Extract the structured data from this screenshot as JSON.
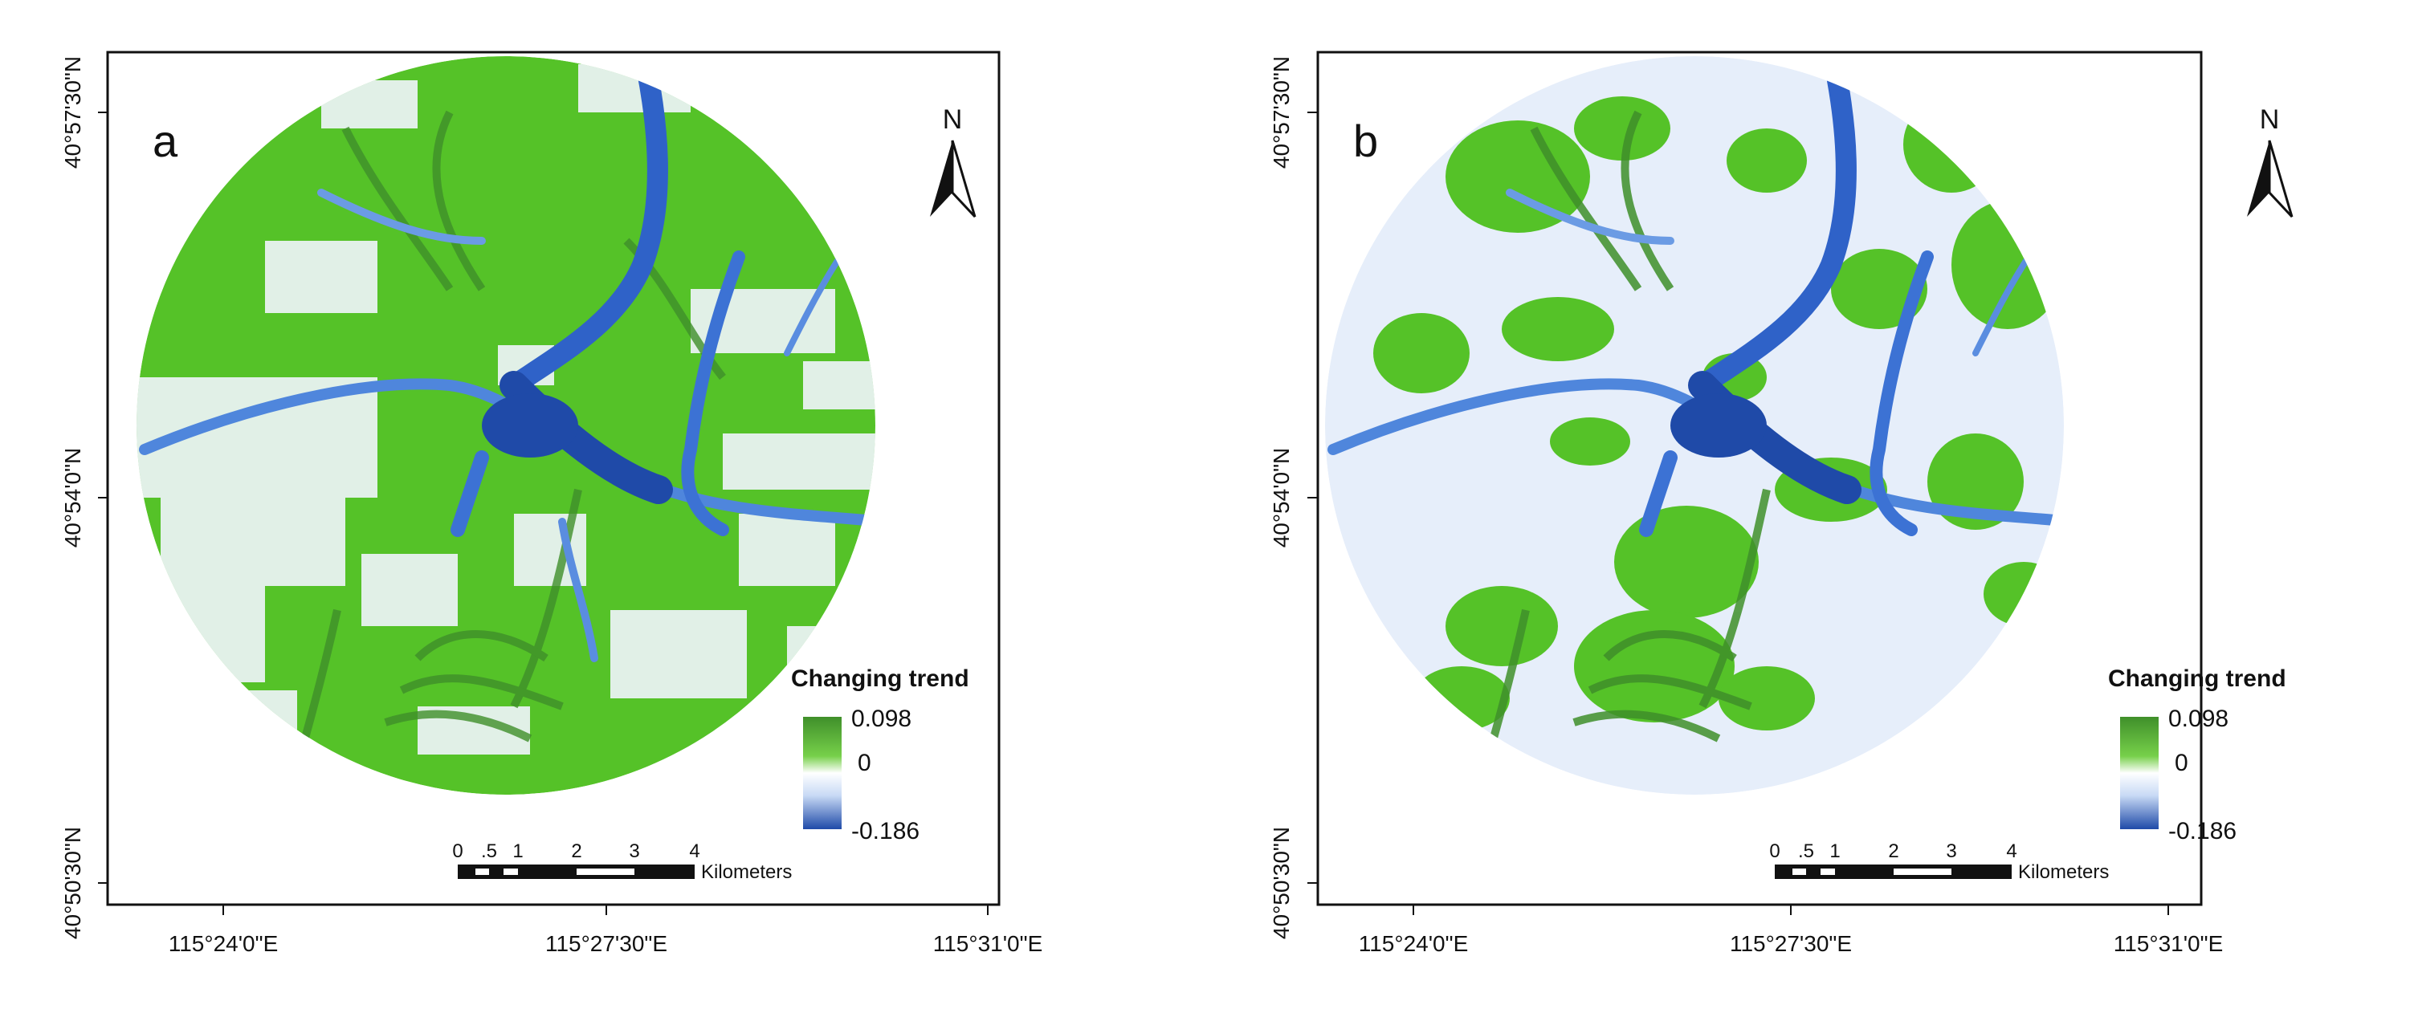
{
  "panels": [
    {
      "id": "a",
      "label": "a",
      "north_label": "N",
      "lat_labels": [
        "40°57'30\"N",
        "40°54'0\"N",
        "40°50'30\"N"
      ],
      "lon_labels": [
        "115°24'0\"E",
        "115°27'30\"E",
        "115°31'0\"E"
      ],
      "legend": {
        "title": "Changing trend",
        "max": "0.098",
        "mid": "0",
        "min": "-0.186"
      },
      "scalebar": {
        "ticks": [
          "0",
          ".5",
          "1",
          "2",
          "3",
          "4"
        ],
        "unit": "Kilometers"
      },
      "green_share": "high"
    },
    {
      "id": "b",
      "label": "b",
      "north_label": "N",
      "lat_labels": [
        "40°57'30\"N",
        "40°54'0\"N",
        "40°50'30\"N"
      ],
      "lon_labels": [
        "115°24'0\"E",
        "115°27'30\"E",
        "115°31'0\"E"
      ],
      "legend": {
        "title": "Changing trend",
        "max": "0.098",
        "mid": "0",
        "min": "-0.186"
      },
      "scalebar": {
        "ticks": [
          "0",
          ".5",
          "1",
          "2",
          "3",
          "4"
        ],
        "unit": "Kilometers"
      },
      "green_share": "low"
    }
  ],
  "colors": {
    "green": "#55c228",
    "dark_green": "#3f8f2a",
    "light_blue": "#dfe9f8",
    "blue": "#2f62c8",
    "dark_blue": "#1f4aa8",
    "frame": "#111111"
  }
}
